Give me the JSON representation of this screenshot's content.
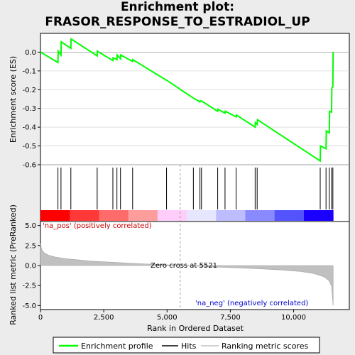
{
  "title_line1": "Enrichment plot:",
  "title_line2": "FRASOR_RESPONSE_TO_ESTRADIOL_UP",
  "chart_data": [
    {
      "type": "line",
      "panel": "enrichment",
      "ylabel": "Enrichment score (ES)",
      "ylim": [
        -0.6,
        0.1
      ],
      "yticks": [
        0.0,
        -0.1,
        -0.2,
        -0.3,
        -0.4,
        -0.5,
        -0.6
      ],
      "ytick_labels": [
        "0.0",
        "-0.1",
        "-0.2",
        "-0.3",
        "-0.4",
        "-0.5",
        "-0.6"
      ],
      "xlim": [
        0,
        12200
      ],
      "series": [
        {
          "name": "Enrichment profile",
          "color": "#00ff00",
          "x": [
            0,
            690,
            700,
            810,
            820,
            1200,
            1210,
            2240,
            2250,
            2860,
            2870,
            3020,
            3030,
            3160,
            3170,
            3640,
            3650,
            4980,
            4990,
            6040,
            6300,
            6310,
            6360,
            7000,
            7010,
            7290,
            7300,
            7730,
            7740,
            8480,
            8490,
            8560,
            8570,
            11050,
            11060,
            11280,
            11290,
            11410,
            11420,
            11500,
            11510,
            11550,
            11560
          ],
          "y": [
            0.0,
            -0.055,
            0.005,
            -0.015,
            0.055,
            0.02,
            0.07,
            -0.02,
            0.005,
            -0.045,
            -0.03,
            -0.04,
            -0.015,
            -0.035,
            -0.015,
            -0.05,
            -0.04,
            -0.15,
            -0.15,
            -0.245,
            -0.265,
            -0.26,
            -0.26,
            -0.315,
            -0.305,
            -0.325,
            -0.315,
            -0.345,
            -0.335,
            -0.4,
            -0.375,
            -0.385,
            -0.36,
            -0.58,
            -0.5,
            -0.515,
            -0.42,
            -0.43,
            -0.315,
            -0.32,
            -0.19,
            -0.185,
            0.0
          ]
        }
      ]
    },
    {
      "type": "hits",
      "panel": "hits",
      "legend": "Hits",
      "x": [
        690,
        810,
        1200,
        2240,
        2860,
        3020,
        3160,
        3640,
        4980,
        6040,
        6300,
        6360,
        7000,
        7290,
        7730,
        8480,
        8560,
        11050,
        11280,
        11410,
        11500,
        11550
      ],
      "colorbar": [
        "#ff0000",
        "#ff3838",
        "#ff6a6a",
        "#ff9c9c",
        "#ffcdfa",
        "#e6e6ff",
        "#bcbcff",
        "#8a8aff",
        "#5454ff",
        "#1a00ff"
      ]
    },
    {
      "type": "area",
      "panel": "ranked_metric",
      "legend": "Ranking metric scores",
      "xlabel": "Rank in Ordered Dataset",
      "ylabel": "Ranked list metric (PreRanked)",
      "ylim": [
        -5.5,
        5.5
      ],
      "yticks": [
        5.0,
        2.5,
        0.0,
        -2.5,
        -5.0
      ],
      "ytick_labels": [
        "5.0",
        "2.5",
        "0.0",
        "-2.5",
        "-5.0"
      ],
      "xticks": [
        0,
        2500,
        5000,
        7500,
        10000
      ],
      "xtick_labels": [
        "0",
        "2,500",
        "5,000",
        "7,500",
        "10,000"
      ],
      "x": [
        0,
        50,
        150,
        300,
        600,
        1000,
        1500,
        2000,
        3000,
        4000,
        5000,
        5521,
        6500,
        7500,
        8500,
        9500,
        10300,
        10800,
        11200,
        11400,
        11500,
        11560
      ],
      "y": [
        2.7,
        2.0,
        1.6,
        1.3,
        1.05,
        0.85,
        0.7,
        0.55,
        0.38,
        0.22,
        0.08,
        0.0,
        -0.12,
        -0.25,
        -0.38,
        -0.55,
        -0.75,
        -1.0,
        -1.4,
        -1.9,
        -2.6,
        -5.0
      ],
      "annotations": {
        "pos": "'na_pos' (positively correlated)",
        "neg": "'na_neg' (negatively correlated)",
        "zero": "Zero cross at 5521"
      },
      "zero_cross": 5521,
      "pos_color": "#cc0000",
      "neg_color": "#0000cc"
    }
  ],
  "legend": {
    "items": [
      {
        "label": "Enrichment profile",
        "color": "#00ff00"
      },
      {
        "label": "Hits",
        "color": "#000000"
      },
      {
        "label": "Ranking metric scores",
        "color": "#c0c0c0"
      }
    ]
  }
}
